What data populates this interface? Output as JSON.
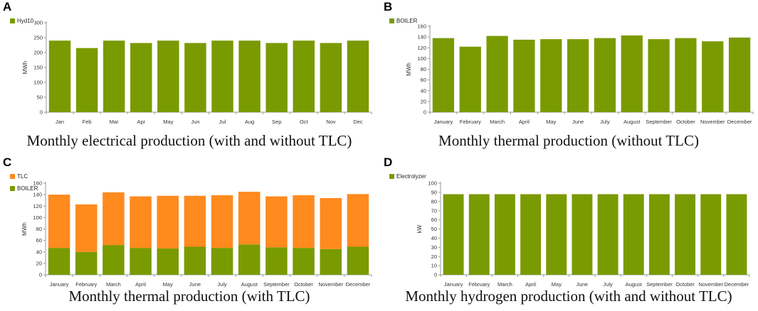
{
  "colors": {
    "green": "#7a9a01",
    "orange": "#ff8a1e",
    "axis": "#9a9a9a"
  },
  "panels": [
    {
      "id": "A",
      "caption": "Monthly electrical production (with and without TLC)",
      "chart_data": {
        "type": "bar",
        "categories": [
          "Jan",
          "Feb",
          "Mar",
          "Apr",
          "May",
          "Jun",
          "Jul",
          "Aug",
          "Sep",
          "Oct",
          "Nov",
          "Dec"
        ],
        "series": [
          {
            "name": "Hyd10",
            "color": "#7a9a01",
            "values": [
              240,
              215,
              240,
              232,
              240,
              232,
              240,
              240,
              232,
              240,
              232,
              240
            ]
          }
        ],
        "ylabel": "MWh",
        "ylim": [
          0,
          300
        ],
        "yticks": [
          0,
          50,
          100,
          150,
          200,
          250,
          300
        ],
        "stacked": false
      }
    },
    {
      "id": "B",
      "caption": "Monthly thermal production (without TLC)",
      "chart_data": {
        "type": "bar",
        "categories": [
          "January",
          "February",
          "March",
          "April",
          "May",
          "June",
          "July",
          "August",
          "September",
          "October",
          "November",
          "December"
        ],
        "series": [
          {
            "name": "BOILER",
            "color": "#7a9a01",
            "values": [
              138,
              122,
              142,
              135,
              136,
              136,
              138,
              143,
              136,
              138,
              132,
              139
            ]
          }
        ],
        "ylabel": "MWh",
        "ylim": [
          0,
          160
        ],
        "yticks": [
          0,
          20,
          40,
          60,
          80,
          100,
          120,
          140,
          160
        ],
        "stacked": false
      }
    },
    {
      "id": "C",
      "caption": "Monthly thermal production (with TLC)",
      "chart_data": {
        "type": "bar",
        "stacked": true,
        "categories": [
          "January",
          "February",
          "March",
          "April",
          "May",
          "June",
          "July",
          "August",
          "September",
          "October",
          "November",
          "December"
        ],
        "series": [
          {
            "name": "BOILER",
            "color": "#7a9a01",
            "values": [
              47,
              40,
              52,
              47,
              46,
              49,
              47,
              53,
              48,
              47,
              45,
              49
            ]
          },
          {
            "name": "TLC",
            "color": "#ff8a1e",
            "values": [
              93,
              83,
              92,
              90,
              92,
              89,
              92,
              92,
              89,
              92,
              89,
              92
            ]
          }
        ],
        "legend_order": [
          "TLC",
          "BOILER"
        ],
        "ylabel": "MWh",
        "ylim": [
          0,
          160
        ],
        "yticks": [
          0,
          20,
          40,
          60,
          80,
          100,
          120,
          140,
          160
        ]
      }
    },
    {
      "id": "D",
      "caption": "Monthly hydrogen production (with and without TLC)",
      "chart_data": {
        "type": "bar",
        "categories": [
          "January",
          "February",
          "March",
          "April",
          "May",
          "June",
          "July",
          "August",
          "September",
          "October",
          "November",
          "December"
        ],
        "series": [
          {
            "name": "Electrolyzer",
            "color": "#7a9a01",
            "values": [
              88,
              88,
              88,
              88,
              88,
              88,
              88,
              88,
              88,
              88,
              88,
              88
            ]
          }
        ],
        "ylabel": "kW",
        "ylim": [
          0,
          100
        ],
        "yticks": [
          0,
          10,
          20,
          30,
          40,
          50,
          60,
          70,
          80,
          90,
          100
        ],
        "stacked": false
      }
    }
  ]
}
